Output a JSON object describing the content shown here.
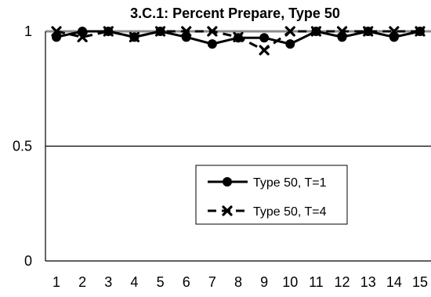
{
  "chart_data": {
    "type": "line",
    "title": "3.C.1: Percent Prepare, Type 50",
    "xlabel": "",
    "ylabel": "",
    "categories": [
      "1",
      "2",
      "3",
      "4",
      "5",
      "6",
      "7",
      "8",
      "9",
      "10",
      "11",
      "12",
      "13",
      "14",
      "15"
    ],
    "ylim": [
      0,
      1
    ],
    "yticks": [
      "0",
      "0.5",
      "1"
    ],
    "grid": "horizontal",
    "legend_position": "center-right",
    "series": [
      {
        "name": "Type 50, T=1",
        "marker": "circle",
        "line_style": "solid",
        "color": "#000000",
        "values": [
          0.975,
          1.0,
          1.0,
          0.975,
          1.0,
          0.975,
          0.945,
          0.972,
          0.972,
          0.945,
          1.0,
          0.975,
          1.0,
          0.975,
          1.0
        ]
      },
      {
        "name": "Type 50, T=4",
        "marker": "x",
        "line_style": "dashed",
        "color": "#000000",
        "values": [
          1.0,
          0.975,
          1.0,
          0.975,
          1.0,
          1.0,
          1.0,
          0.975,
          0.918,
          1.0,
          1.0,
          1.0,
          1.0,
          1.0,
          1.0
        ]
      }
    ]
  }
}
